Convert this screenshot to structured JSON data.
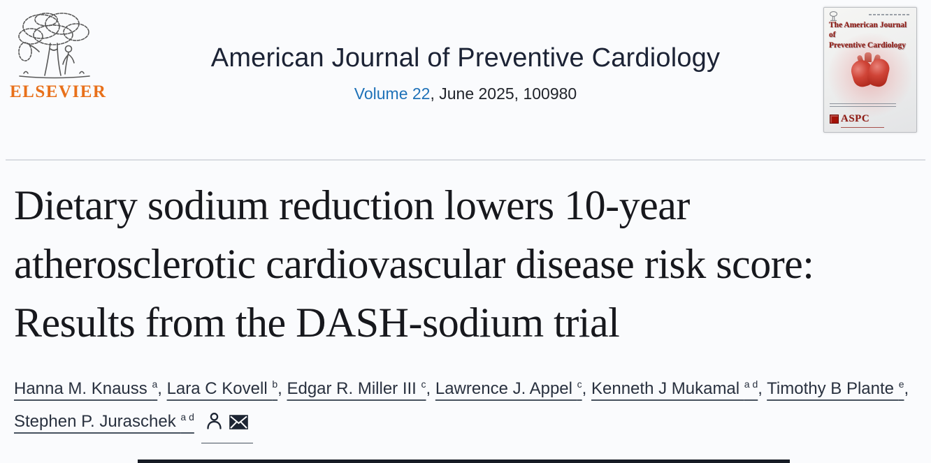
{
  "header": {
    "publisher_wordmark": "ELSEVIER",
    "journal_title": "American Journal of Preventive Cardiology",
    "volume_link": "Volume 22",
    "issue_suffix": ", June 2025, 100980",
    "cover": {
      "title_line1": "The American Journal of",
      "title_line2": "Preventive Cardiology",
      "society_acronym": "ASPC"
    }
  },
  "article": {
    "title": "Dietary sodium reduction lowers 10-year atherosclerotic cardiovascular disease risk score: Results from the DASH-sodium trial",
    "authors": [
      {
        "name": "Hanna M. Knauss",
        "affiliations": "a"
      },
      {
        "name": "Lara C Kovell",
        "affiliations": "b"
      },
      {
        "name": "Edgar R. Miller III",
        "affiliations": "c"
      },
      {
        "name": "Lawrence J. Appel",
        "affiliations": "c"
      },
      {
        "name": "Kenneth J Mukamal",
        "affiliations": "a d"
      },
      {
        "name": "Timothy B Plante",
        "affiliations": "e"
      },
      {
        "name": "Stephen P. Juraschek",
        "affiliations": "a d"
      }
    ],
    "correspondence_icons": [
      "person-icon",
      "envelope-icon"
    ]
  },
  "colors": {
    "elsevier_orange": "#e8701a",
    "journal_title": "#1c2335",
    "link_blue": "#1f72b8",
    "article_title": "#17181d",
    "author_text": "#29313f",
    "divider": "#d9dce1",
    "cover_red": "#8f1d16",
    "bottom_bar": "#161b24",
    "page_bg": "#fafbfd"
  }
}
